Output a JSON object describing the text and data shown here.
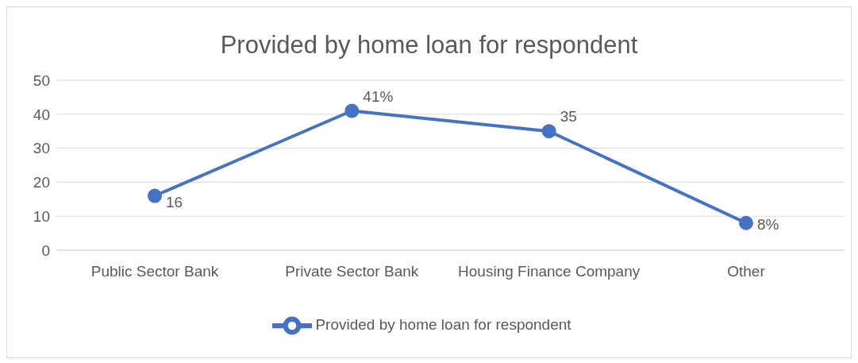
{
  "chart_data": {
    "type": "line",
    "title": "Provided by home loan for respondent",
    "categories": [
      "Public Sector Bank",
      "Private Sector Bank",
      "Housing Finance Company",
      "Other"
    ],
    "series": [
      {
        "name": "Provided by home loan for respondent",
        "color": "#4472c4",
        "values": [
          16,
          41,
          35,
          8
        ],
        "value_labels": [
          "16",
          "41%",
          "35",
          "8%"
        ]
      }
    ],
    "ylim": [
      0,
      50
    ],
    "yticks": [
      0,
      10,
      20,
      30,
      40,
      50
    ],
    "grid": "y",
    "legend": "bottom",
    "marker": "circle",
    "line_style": "solid"
  }
}
